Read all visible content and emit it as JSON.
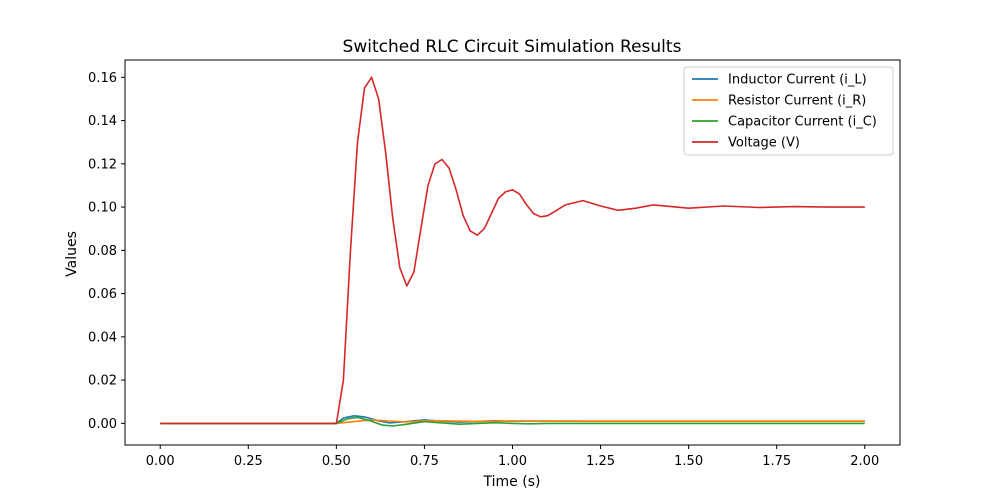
{
  "chart_data": {
    "type": "line",
    "title": "Switched RLC Circuit Simulation Results",
    "xlabel": "Time (s)",
    "ylabel": "Values",
    "xlim": [
      -0.1,
      2.1
    ],
    "ylim": [
      -0.01,
      0.168
    ],
    "xticks": [
      0.0,
      0.25,
      0.5,
      0.75,
      1.0,
      1.25,
      1.5,
      1.75,
      2.0
    ],
    "xtick_labels": [
      "0.00",
      "0.25",
      "0.50",
      "0.75",
      "1.00",
      "1.25",
      "1.50",
      "1.75",
      "2.00"
    ],
    "yticks": [
      0.0,
      0.02,
      0.04,
      0.06,
      0.08,
      0.1,
      0.12,
      0.14,
      0.16
    ],
    "ytick_labels": [
      "0.00",
      "0.02",
      "0.04",
      "0.06",
      "0.08",
      "0.10",
      "0.12",
      "0.14",
      "0.16"
    ],
    "grid": false,
    "legend_position": "top-right",
    "series": [
      {
        "name": "Inductor Current (i_L)",
        "color": "#1f77b4",
        "x": [
          0.0,
          0.5,
          0.52,
          0.55,
          0.58,
          0.62,
          0.65,
          0.7,
          0.75,
          0.8,
          0.85,
          0.9,
          0.95,
          1.0,
          1.1,
          1.2,
          1.3,
          1.5,
          1.75,
          2.0
        ],
        "y": [
          0.0,
          0.0,
          0.0025,
          0.0035,
          0.003,
          0.0012,
          0.0002,
          0.0008,
          0.0016,
          0.001,
          0.0006,
          0.0009,
          0.0012,
          0.001,
          0.0011,
          0.001,
          0.001,
          0.001,
          0.001,
          0.001
        ]
      },
      {
        "name": "Resistor Current (i_R)",
        "color": "#ff7f0e",
        "x": [
          0.0,
          0.5,
          0.55,
          0.6,
          0.65,
          0.7,
          0.75,
          0.8,
          0.9,
          1.0,
          1.2,
          1.5,
          2.0
        ],
        "y": [
          0.0,
          0.0,
          0.0008,
          0.0016,
          0.0011,
          0.0007,
          0.0012,
          0.0012,
          0.0009,
          0.0011,
          0.001,
          0.001,
          0.001
        ]
      },
      {
        "name": "Capacitor Current (i_C)",
        "color": "#2ca02c",
        "x": [
          0.0,
          0.5,
          0.53,
          0.56,
          0.6,
          0.63,
          0.66,
          0.7,
          0.75,
          0.8,
          0.85,
          0.9,
          0.95,
          1.0,
          1.05,
          1.1,
          1.2,
          1.3,
          1.5,
          2.0
        ],
        "y": [
          0.0,
          0.0,
          0.002,
          0.0028,
          0.001,
          -0.0008,
          -0.0012,
          -0.0004,
          0.0008,
          0.0002,
          -0.0004,
          0.0,
          0.0003,
          0.0,
          -0.0002,
          0.0,
          0.0,
          0.0,
          0.0,
          0.0
        ]
      },
      {
        "name": "Voltage (V)",
        "color": "#d62728",
        "x": [
          0.0,
          0.5,
          0.52,
          0.54,
          0.56,
          0.58,
          0.6,
          0.62,
          0.64,
          0.66,
          0.68,
          0.7,
          0.72,
          0.74,
          0.76,
          0.78,
          0.8,
          0.82,
          0.84,
          0.86,
          0.88,
          0.9,
          0.92,
          0.94,
          0.96,
          0.98,
          1.0,
          1.02,
          1.04,
          1.06,
          1.08,
          1.1,
          1.12,
          1.15,
          1.2,
          1.25,
          1.3,
          1.35,
          1.4,
          1.5,
          1.6,
          1.7,
          1.8,
          1.9,
          2.0
        ],
        "y": [
          0.0,
          0.0,
          0.02,
          0.08,
          0.13,
          0.155,
          0.16,
          0.15,
          0.125,
          0.095,
          0.072,
          0.0635,
          0.07,
          0.09,
          0.11,
          0.12,
          0.122,
          0.118,
          0.108,
          0.096,
          0.089,
          0.087,
          0.09,
          0.097,
          0.104,
          0.107,
          0.108,
          0.106,
          0.101,
          0.097,
          0.0955,
          0.096,
          0.098,
          0.101,
          0.103,
          0.1005,
          0.0985,
          0.0995,
          0.101,
          0.0995,
          0.1005,
          0.0998,
          0.1002,
          0.1,
          0.1
        ]
      }
    ]
  }
}
